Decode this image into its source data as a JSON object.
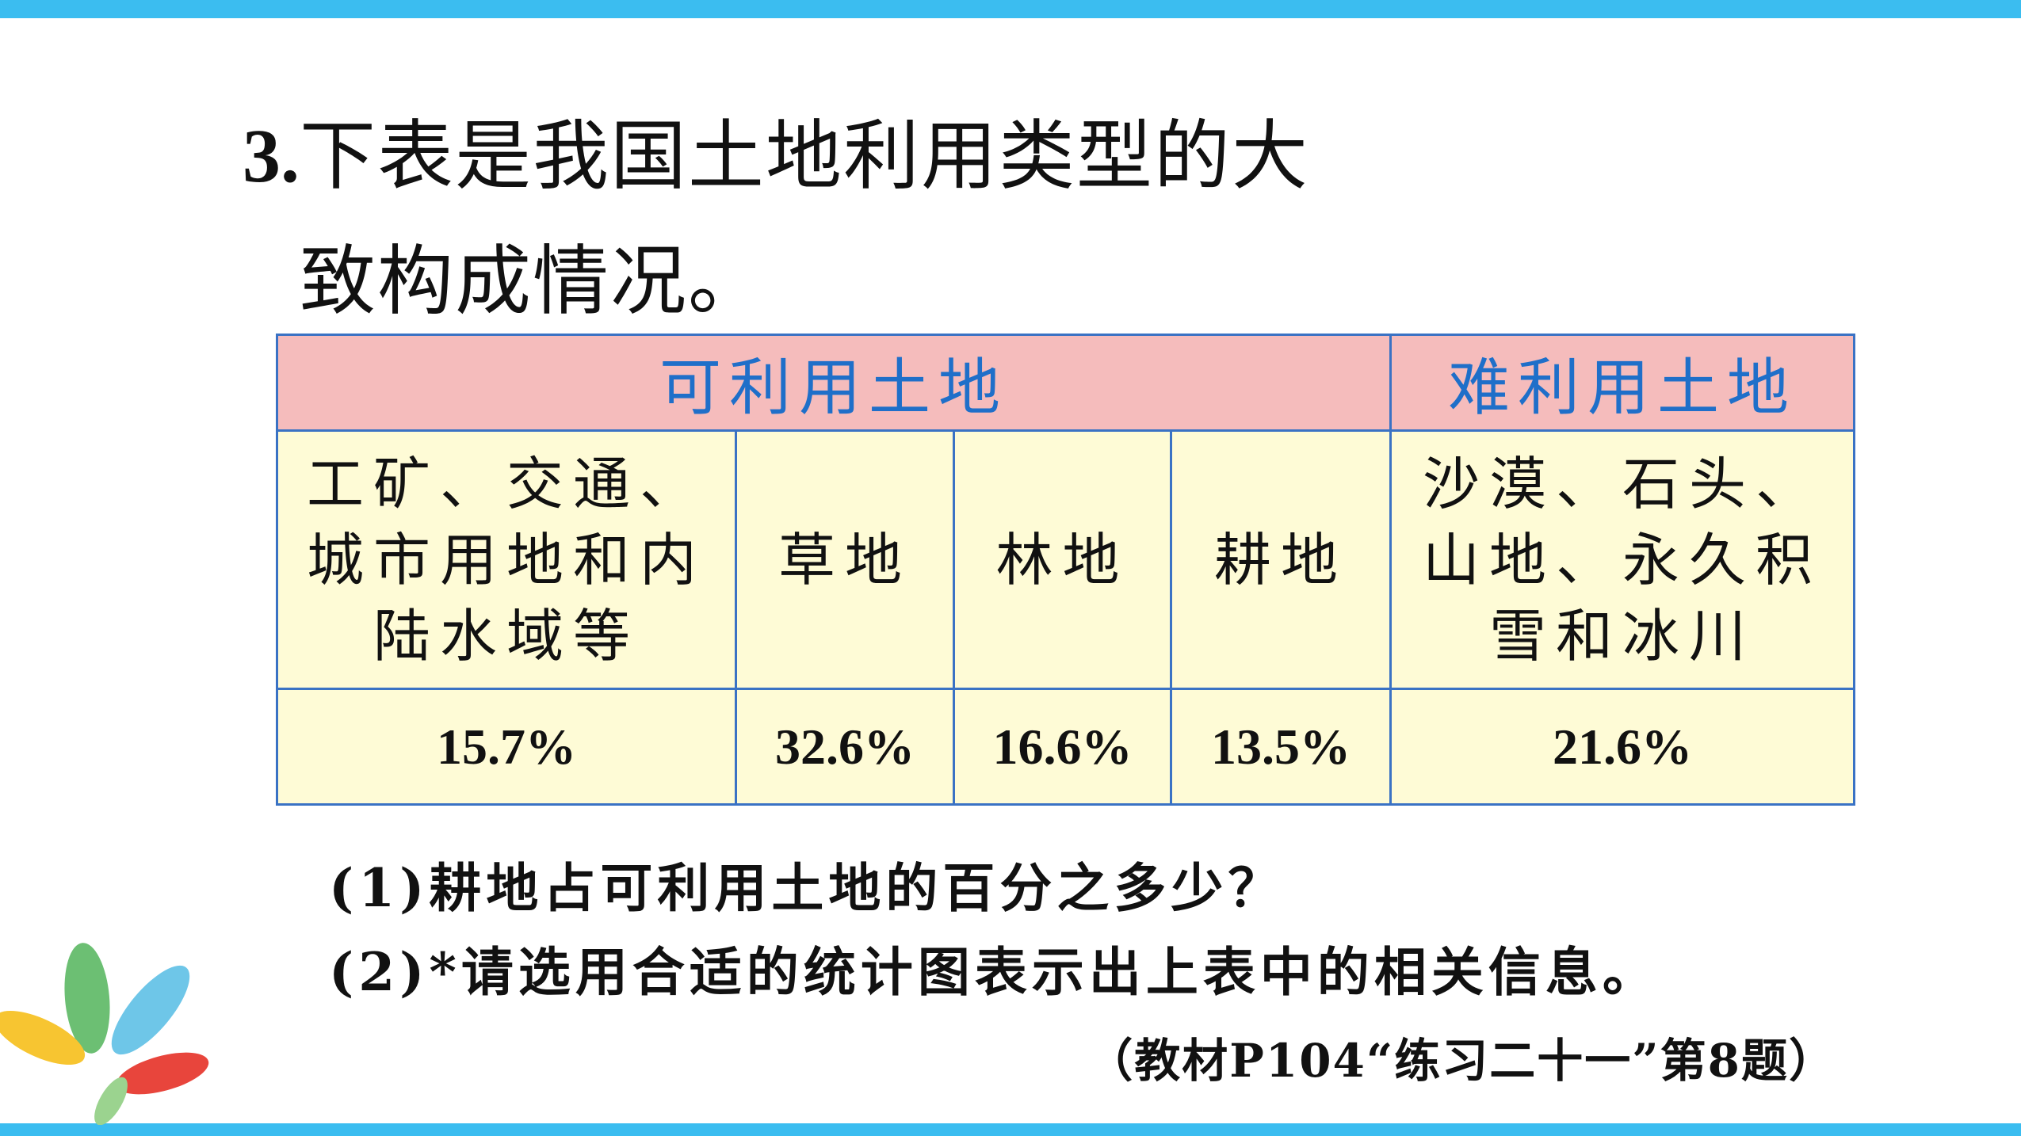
{
  "title": {
    "number": "3.",
    "text": "下表是我国土地利用类型的大致构成情况。"
  },
  "table": {
    "groups": [
      "可利用土地",
      "难利用土地"
    ],
    "columns": [
      "工矿、交通、城市用地和内陆水域等",
      "草地",
      "林地",
      "耕地",
      "沙漠、石头、山地、永久积雪和冰川"
    ],
    "values": [
      "15.7%",
      "32.6%",
      "16.6%",
      "13.5%",
      "21.6%"
    ]
  },
  "questions": [
    "(1)耕地占可利用土地的百分之多少？",
    "(2)*请选用合适的统计图表示出上表中的相关信息。"
  ],
  "source": "（教材P104“练习二十一”第8题）"
}
